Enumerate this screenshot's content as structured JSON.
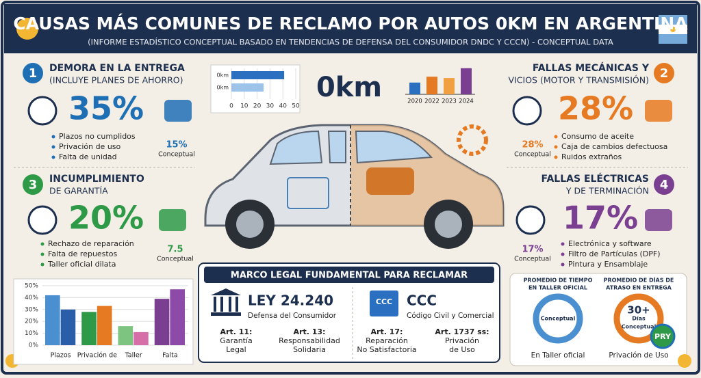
{
  "header": {
    "title": "CAUSAS MÁS COMUNES DE RECLAMO POR AUTOS 0KM EN ARGENTINA",
    "subtitle": "(INFORME ESTADÍSTICO CONCEPTUAL BASADO EN TENDENCIAS DE DEFENSA DEL CONSUMIDOR DNDC Y CCCN) - CONCEPTUAL DATA"
  },
  "sections": [
    {
      "number": "1",
      "title": "DEMORA EN LA ENTREGA",
      "subtitle": "(INCLUYE PLANES DE AHORRO)",
      "percent": "35%",
      "bullets": [
        "Plazos no cumplidos",
        "Privación de uso",
        "Falta de unidad"
      ],
      "side_value": "15%",
      "side_label": "Conceptual"
    },
    {
      "number": "2",
      "title": "FALLAS MECÁNICAS Y",
      "subtitle": "VICIOS (MOTOR Y TRANSMISIÓN)",
      "percent": "28%",
      "bullets": [
        "Consumo de aceite",
        "Caja de cambios defectuosa",
        "Ruidos extraños"
      ],
      "side_value": "28%",
      "side_label": "Conceptual"
    },
    {
      "number": "3",
      "title": "INCUMPLIMIENTO",
      "subtitle": "DE GARANTÍA",
      "percent": "20%",
      "bullets": [
        "Rechazo de reparación",
        "Falta de repuestos",
        "Taller oficial dilata"
      ],
      "side_value": "7.5",
      "side_label": "Conceptual"
    },
    {
      "number": "4",
      "title": "FALLAS ELÉCTRICAS",
      "subtitle": "Y DE TERMINACIÓN",
      "percent": "17%",
      "bullets": [
        "Electrónica y software",
        "Filtro de Partículas (DPF)",
        "Pintura y Ensamblaje"
      ],
      "side_value": "17%",
      "side_label": "Conceptual"
    }
  ],
  "center": {
    "label": "0km",
    "hbar_chart": {
      "categories": [
        "0km",
        "0km"
      ],
      "values": [
        41,
        25
      ],
      "colors": [
        "#2a6fc0",
        "#9cc3ea"
      ],
      "xlim": [
        0,
        50
      ],
      "xticks": [
        0,
        10,
        20,
        30,
        40,
        50
      ]
    },
    "year_chart": {
      "categories": [
        "2020",
        "2022",
        "2023",
        "2024"
      ],
      "values": [
        18,
        27,
        25,
        40
      ],
      "colors": [
        "#2a6fc0",
        "#e67a22",
        "#f0a040",
        "#7b3f91"
      ],
      "ylim": [
        0,
        45
      ]
    }
  },
  "bottom_chart": {
    "ylim": [
      0,
      50
    ],
    "yticks": [
      {
        "value": 0,
        "label": "0%"
      },
      {
        "value": 10,
        "label": "10%"
      },
      {
        "value": 20,
        "label": "20%"
      },
      {
        "value": 30,
        "label": "30%"
      },
      {
        "value": 40,
        "label": "40%"
      },
      {
        "value": 50,
        "label": "50%"
      }
    ],
    "categories": [
      "Plazos",
      null,
      "Privación de",
      null,
      "Taller",
      null,
      "Falta",
      null
    ],
    "values": [
      42,
      30,
      28,
      33,
      16,
      11,
      39,
      47
    ],
    "colors": [
      "#4a90d0",
      "#2a5ea8",
      "#2e9a48",
      "#e67a22",
      "#7cc47f",
      "#d66fa8",
      "#7b3f91",
      "#8e4aa8"
    ]
  },
  "legal": {
    "title": "MARCO LEGAL FUNDAMENTAL PARA RECLAMAR",
    "laws": [
      {
        "name": "LEY 24.240",
        "description": "Defensa del Consumidor"
      },
      {
        "icon": "CCC",
        "name": "CCC",
        "description": "Código Civil y Comercial"
      }
    ],
    "articles": [
      [
        "Art. 11:",
        "Garantía",
        "Legal"
      ],
      [
        "Art. 13:",
        "Responsabilidad",
        "Solidaria"
      ],
      [
        "Art. 17:",
        "Reparación",
        "No Satisfactoria"
      ],
      [
        "Art. 1737 ss:",
        "Privación",
        "de Uso"
      ]
    ]
  },
  "gauges": [
    {
      "title": [
        "PROMEDIO DE TIEMPO",
        "EN TALLER OFICIAL"
      ],
      "center": [
        "Conceptual"
      ],
      "caption": "En Taller oficial"
    },
    {
      "title": [
        "PROMEDIO DE DÍAS DE",
        "ATRASO EN ENTREGA"
      ],
      "center": [
        "30+",
        "Días",
        "Conceptual"
      ],
      "caption": "Privación de Uso"
    }
  ],
  "badge": "PRY"
}
